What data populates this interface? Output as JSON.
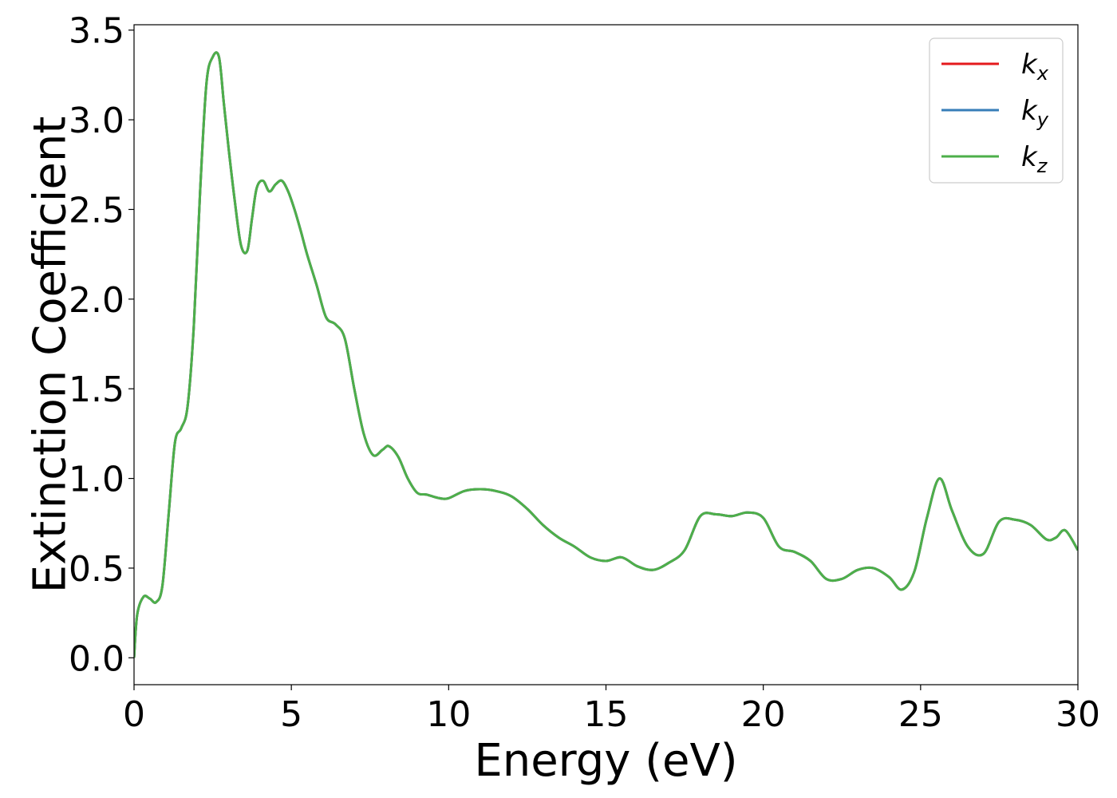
{
  "chart_data": {
    "type": "line",
    "xlabel": "Energy (eV)",
    "ylabel": "Extinction Coefficient",
    "xlim": [
      0,
      30
    ],
    "ylim": [
      -0.15,
      3.53
    ],
    "xticks": [
      0,
      5,
      10,
      15,
      20,
      25,
      30
    ],
    "xtick_labels": [
      "0",
      "5",
      "10",
      "15",
      "20",
      "25",
      "30"
    ],
    "yticks": [
      0.0,
      0.5,
      1.0,
      1.5,
      2.0,
      2.5,
      3.0,
      3.5
    ],
    "ytick_labels": [
      "0.0",
      "0.5",
      "1.0",
      "1.5",
      "2.0",
      "2.5",
      "3.0",
      "3.5"
    ],
    "grid": false,
    "legend_position": "top-right",
    "legend": [
      {
        "base": "k",
        "sub": "x",
        "color": "#e41a1c"
      },
      {
        "base": "k",
        "sub": "y",
        "color": "#377eb8"
      },
      {
        "base": "k",
        "sub": "z",
        "color": "#4daf4a"
      }
    ],
    "x": [
      0.0,
      0.1,
      0.3,
      0.5,
      0.7,
      0.9,
      1.1,
      1.3,
      1.5,
      1.7,
      1.9,
      2.1,
      2.3,
      2.5,
      2.7,
      2.85,
      3.0,
      3.2,
      3.4,
      3.6,
      3.75,
      3.9,
      4.1,
      4.3,
      4.5,
      4.7,
      4.9,
      5.1,
      5.3,
      5.5,
      5.8,
      6.1,
      6.4,
      6.7,
      7.0,
      7.3,
      7.6,
      7.9,
      8.1,
      8.4,
      8.7,
      9.0,
      9.3,
      9.7,
      10.0,
      10.5,
      11.0,
      11.5,
      12.0,
      12.5,
      13.0,
      13.5,
      14.0,
      14.5,
      15.0,
      15.5,
      16.0,
      16.5,
      17.0,
      17.5,
      18.0,
      18.5,
      19.0,
      19.5,
      20.0,
      20.5,
      21.0,
      21.5,
      22.0,
      22.5,
      23.0,
      23.5,
      24.0,
      24.4,
      24.8,
      25.2,
      25.6,
      26.0,
      26.5,
      27.0,
      27.5,
      28.0,
      28.5,
      29.0,
      29.3,
      29.6,
      30.0
    ],
    "series": [
      {
        "name": "k_x",
        "color": "#e41a1c",
        "values": [
          0.0,
          0.24,
          0.34,
          0.33,
          0.31,
          0.4,
          0.8,
          1.2,
          1.28,
          1.4,
          1.85,
          2.6,
          3.2,
          3.35,
          3.35,
          3.1,
          2.85,
          2.55,
          2.3,
          2.27,
          2.45,
          2.62,
          2.66,
          2.6,
          2.64,
          2.66,
          2.6,
          2.5,
          2.38,
          2.25,
          2.08,
          1.9,
          1.86,
          1.78,
          1.5,
          1.25,
          1.13,
          1.16,
          1.18,
          1.12,
          1.0,
          0.92,
          0.91,
          0.89,
          0.89,
          0.93,
          0.94,
          0.93,
          0.9,
          0.83,
          0.74,
          0.67,
          0.62,
          0.56,
          0.54,
          0.56,
          0.51,
          0.49,
          0.53,
          0.6,
          0.79,
          0.8,
          0.79,
          0.81,
          0.78,
          0.62,
          0.59,
          0.54,
          0.44,
          0.44,
          0.49,
          0.5,
          0.45,
          0.38,
          0.48,
          0.78,
          1.0,
          0.82,
          0.62,
          0.58,
          0.76,
          0.77,
          0.74,
          0.66,
          0.67,
          0.71,
          0.6
        ]
      },
      {
        "name": "k_y",
        "color": "#377eb8",
        "values": [
          0.0,
          0.24,
          0.34,
          0.33,
          0.31,
          0.4,
          0.8,
          1.2,
          1.28,
          1.4,
          1.85,
          2.6,
          3.2,
          3.35,
          3.35,
          3.1,
          2.85,
          2.55,
          2.3,
          2.27,
          2.45,
          2.62,
          2.66,
          2.6,
          2.64,
          2.66,
          2.6,
          2.5,
          2.38,
          2.25,
          2.08,
          1.9,
          1.86,
          1.78,
          1.5,
          1.25,
          1.13,
          1.16,
          1.18,
          1.12,
          1.0,
          0.92,
          0.91,
          0.89,
          0.89,
          0.93,
          0.94,
          0.93,
          0.9,
          0.83,
          0.74,
          0.67,
          0.62,
          0.56,
          0.54,
          0.56,
          0.51,
          0.49,
          0.53,
          0.6,
          0.79,
          0.8,
          0.79,
          0.81,
          0.78,
          0.62,
          0.59,
          0.54,
          0.44,
          0.44,
          0.49,
          0.5,
          0.45,
          0.38,
          0.48,
          0.78,
          1.0,
          0.82,
          0.62,
          0.58,
          0.76,
          0.77,
          0.74,
          0.66,
          0.67,
          0.71,
          0.6
        ]
      },
      {
        "name": "k_z",
        "color": "#4daf4a",
        "values": [
          0.0,
          0.24,
          0.34,
          0.33,
          0.31,
          0.4,
          0.8,
          1.2,
          1.28,
          1.4,
          1.85,
          2.6,
          3.2,
          3.35,
          3.35,
          3.1,
          2.85,
          2.55,
          2.3,
          2.27,
          2.45,
          2.62,
          2.66,
          2.6,
          2.64,
          2.66,
          2.6,
          2.5,
          2.38,
          2.25,
          2.08,
          1.9,
          1.86,
          1.78,
          1.5,
          1.25,
          1.13,
          1.16,
          1.18,
          1.12,
          1.0,
          0.92,
          0.91,
          0.89,
          0.89,
          0.93,
          0.94,
          0.93,
          0.9,
          0.83,
          0.74,
          0.67,
          0.62,
          0.56,
          0.54,
          0.56,
          0.51,
          0.49,
          0.53,
          0.6,
          0.79,
          0.8,
          0.79,
          0.81,
          0.78,
          0.62,
          0.59,
          0.54,
          0.44,
          0.44,
          0.49,
          0.5,
          0.45,
          0.38,
          0.48,
          0.78,
          1.0,
          0.82,
          0.62,
          0.58,
          0.76,
          0.77,
          0.74,
          0.66,
          0.67,
          0.71,
          0.6
        ]
      }
    ]
  }
}
